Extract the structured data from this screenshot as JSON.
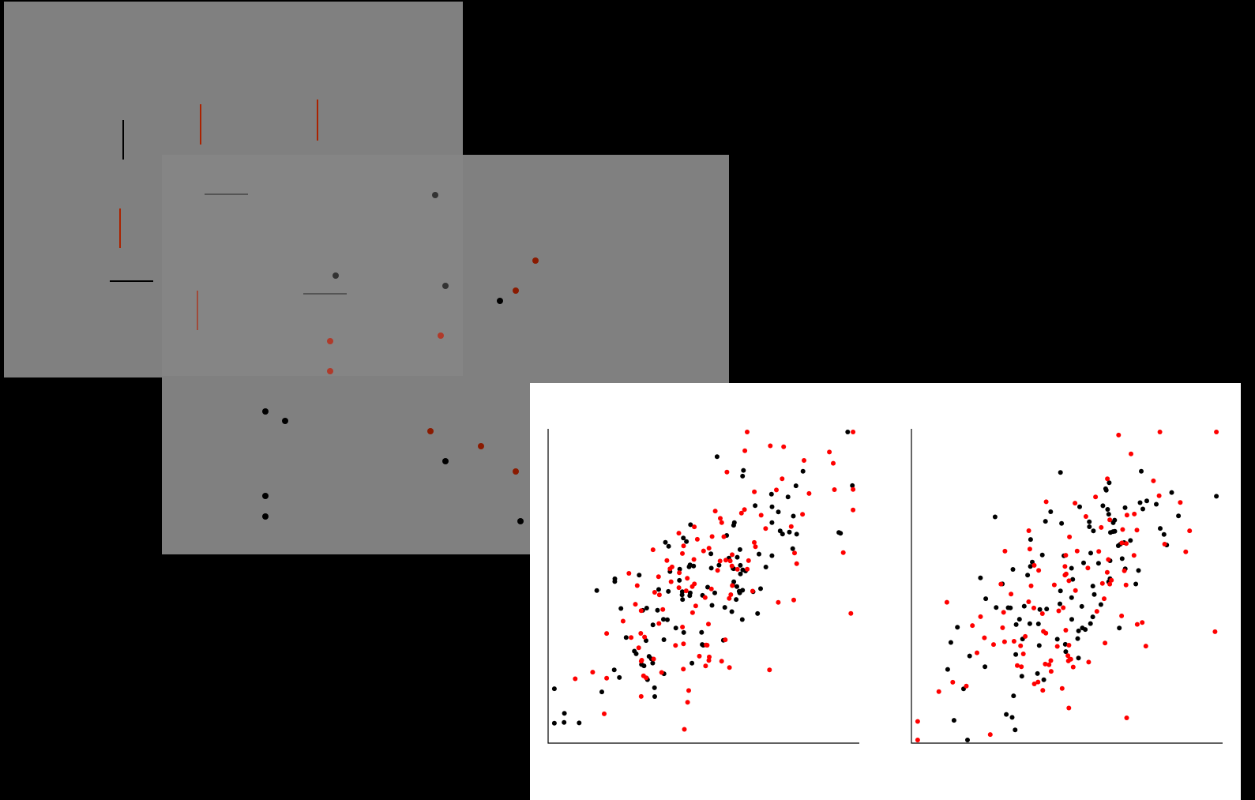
{
  "colors": {
    "background": "#000000",
    "panel_back": "#808080",
    "panel_mid": "#808080",
    "panel_mid_overlap": "#858585",
    "plot_bg": "#ffffff",
    "black_mark": "#000000",
    "red_mark": "#aa2200",
    "red_point": "#ff0000"
  },
  "panels": {
    "back": {
      "name": "oriented-lines-display",
      "items": 9
    },
    "mid": {
      "name": "colored-dots-display",
      "items": 22
    },
    "front": {
      "name": "scatterplot-pair"
    }
  },
  "chart_data": [
    {
      "type": "scatter",
      "title": "",
      "xlabel": "",
      "ylabel": "",
      "grid": false,
      "xlim": [
        0,
        100
      ],
      "ylim": [
        0,
        100
      ],
      "series": [
        {
          "color": "#000000",
          "seed": 11,
          "count": 115,
          "slope": 0.7,
          "noise": 14
        },
        {
          "color": "#ff0000",
          "seed": 29,
          "count": 115,
          "slope": 0.7,
          "noise": 16
        }
      ]
    },
    {
      "type": "scatter",
      "title": "",
      "xlabel": "",
      "ylabel": "",
      "grid": false,
      "xlim": [
        0,
        100
      ],
      "ylim": [
        0,
        100
      ],
      "series": [
        {
          "color": "#000000",
          "seed": 47,
          "count": 105,
          "slope": 0.7,
          "noise": 15
        },
        {
          "color": "#ff0000",
          "seed": 83,
          "count": 105,
          "slope": 0.6,
          "noise": 18
        }
      ]
    }
  ]
}
